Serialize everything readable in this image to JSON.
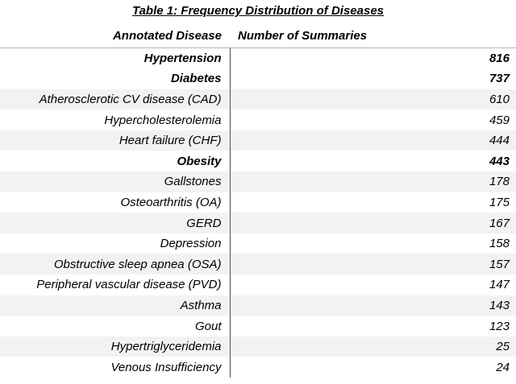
{
  "title": "Table 1: Frequency Distribution of Diseases",
  "table": {
    "columns": {
      "disease": "Annotated Disease",
      "count": "Number of Summaries"
    },
    "rows": [
      {
        "disease": "Hypertension",
        "count": "816",
        "bold": true
      },
      {
        "disease": "Diabetes",
        "count": "737",
        "bold": true
      },
      {
        "disease": "Atherosclerotic CV disease (CAD)",
        "count": "610",
        "bold": false
      },
      {
        "disease": "Hypercholesterolemia",
        "count": "459",
        "bold": false
      },
      {
        "disease": "Heart failure (CHF)",
        "count": "444",
        "bold": false
      },
      {
        "disease": "Obesity",
        "count": "443",
        "bold": true
      },
      {
        "disease": "Gallstones",
        "count": "178",
        "bold": false
      },
      {
        "disease": "Osteoarthritis (OA)",
        "count": "175",
        "bold": false
      },
      {
        "disease": "GERD",
        "count": "167",
        "bold": false
      },
      {
        "disease": "Depression",
        "count": "158",
        "bold": false
      },
      {
        "disease": "Obstructive sleep apnea (OSA)",
        "count": "157",
        "bold": false
      },
      {
        "disease": "Peripheral vascular disease (PVD)",
        "count": "147",
        "bold": false
      },
      {
        "disease": "Asthma",
        "count": "143",
        "bold": false
      },
      {
        "disease": "Gout",
        "count": "123",
        "bold": false
      },
      {
        "disease": "Hypertriglyceridemia",
        "count": "25",
        "bold": false
      },
      {
        "disease": "Venous Insufficiency",
        "count": "24",
        "bold": false
      }
    ]
  },
  "colors": {
    "row_alt_background": "#f2f2f2",
    "header_rule": "#b5b5b5",
    "column_divider": "#4d4d4d",
    "text": "#000000"
  }
}
